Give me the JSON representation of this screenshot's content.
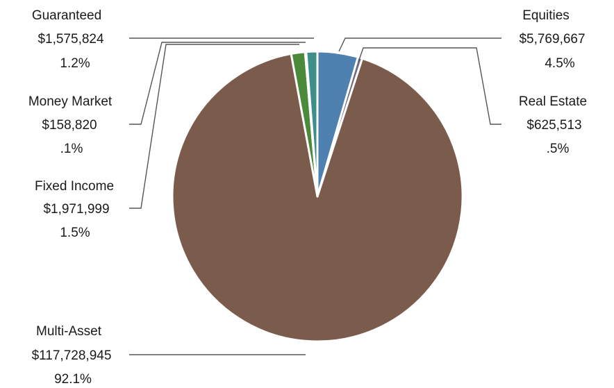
{
  "chart_data": {
    "type": "pie",
    "title": "",
    "slices": [
      {
        "key": "equities",
        "label": "Equities",
        "amount": "$5,769,667",
        "percent": "4.5%",
        "value": 5769667,
        "color": "#4f81b0"
      },
      {
        "key": "real_estate",
        "label": "Real Estate",
        "amount": "$625,513",
        "percent": ".5%",
        "value": 625513,
        "color": "#6f6a80"
      },
      {
        "key": "multi_asset",
        "label": "Multi-Asset",
        "amount": "$117,728,945",
        "percent": "92.1%",
        "value": 117728945,
        "color": "#7b5b4b"
      },
      {
        "key": "fixed_income",
        "label": "Fixed Income",
        "amount": "$1,971,999",
        "percent": "1.5%",
        "value": 1971999,
        "color": "#4a8a3a"
      },
      {
        "key": "money_market",
        "label": "Money Market",
        "amount": "$158,820",
        "percent": ".1%",
        "value": 158820,
        "color": "#d9b84a"
      },
      {
        "key": "guaranteed",
        "label": "Guaranteed",
        "amount": "$1,575,824",
        "percent": "1.2%",
        "value": 1575824,
        "color": "#3e8f8c"
      }
    ],
    "legend": "none"
  }
}
